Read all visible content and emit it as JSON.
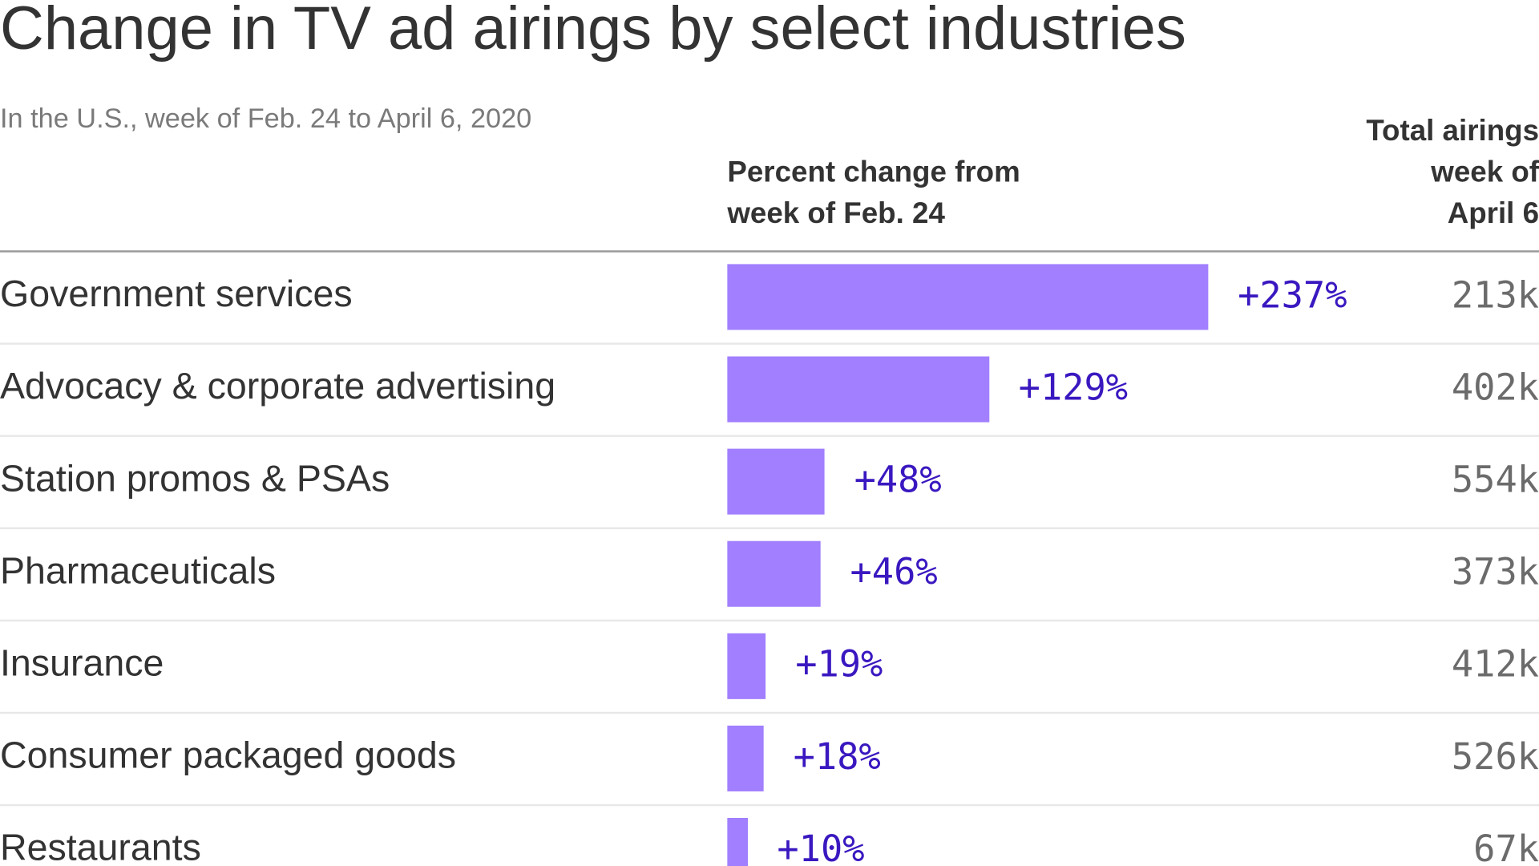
{
  "chart_data": {
    "type": "bar",
    "title": "Change in TV ad airings by select industries",
    "subtitle": "In the U.S., week of Feb. 24 to April 6, 2020",
    "column_headers": {
      "percent_change": [
        "Percent change from",
        "week of Feb. 24"
      ],
      "total": [
        "Total airings",
        "week of",
        "April 6"
      ]
    },
    "bar_color": "#a17ffe",
    "value_color": "#3a18c0",
    "categories": [
      "Government services",
      "Advocacy & corporate advertising",
      "Station promos & PSAs",
      "Pharmaceuticals",
      "Insurance",
      "Consumer packaged goods",
      "Restaurants"
    ],
    "values": [
      237,
      129,
      48,
      46,
      19,
      18,
      10
    ],
    "value_labels": [
      "+237%",
      "+129%",
      "+48%",
      "+46%",
      "+19%",
      "+18%",
      "+10%"
    ],
    "totals": [
      "213k",
      "402k",
      "554k",
      "373k",
      "412k",
      "526k",
      "67k"
    ]
  }
}
